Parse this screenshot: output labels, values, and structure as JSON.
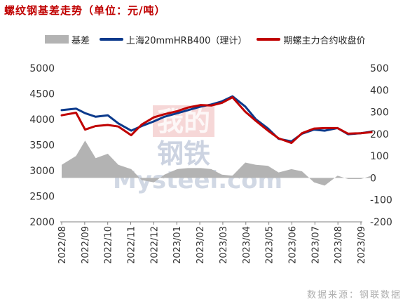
{
  "title": "螺纹钢基差走势（单位：元/吨）",
  "source": "数据来源：钢联数据",
  "watermark": {
    "mark": "我的钢铁",
    "site": "Mysteel.com"
  },
  "chart_data": {
    "type": "line",
    "x_tick_labels": [
      "2022/08",
      "2022/09",
      "2022/10",
      "2022/11",
      "2022/12",
      "2023/01",
      "2023/02",
      "2023/03",
      "2023/04",
      "2023/05",
      "2023/06",
      "2023/07",
      "2023/08",
      "2023/09"
    ],
    "x": [
      "2022-08-01",
      "2022-08-20",
      "2022-09-01",
      "2022-09-15",
      "2022-10-01",
      "2022-10-15",
      "2022-11-01",
      "2022-11-15",
      "2022-12-01",
      "2022-12-15",
      "2023-01-01",
      "2023-01-15",
      "2023-02-01",
      "2023-02-15",
      "2023-03-01",
      "2023-03-15",
      "2023-04-01",
      "2023-04-15",
      "2023-05-01",
      "2023-05-15",
      "2023-06-01",
      "2023-06-15",
      "2023-07-01",
      "2023-07-15",
      "2023-08-01",
      "2023-08-15",
      "2023-09-01",
      "2023-09-15"
    ],
    "y_left": {
      "range": [
        2000,
        5000
      ],
      "ticks": [
        5000,
        4500,
        4000,
        3500,
        3000,
        2500,
        2000
      ]
    },
    "y_right": {
      "range": [
        -200,
        500
      ],
      "ticks": [
        500,
        400,
        300,
        200,
        100,
        0,
        -100,
        -200
      ]
    },
    "legend_position": "top",
    "series": [
      {
        "name": "基差",
        "axis": "right",
        "kind": "area",
        "color": "#b3b3b3",
        "values": [
          60,
          100,
          170,
          90,
          110,
          60,
          40,
          -10,
          -20,
          15,
          40,
          45,
          45,
          40,
          15,
          10,
          70,
          60,
          55,
          25,
          40,
          30,
          -20,
          -35,
          10,
          -5,
          -5,
          10
        ]
      },
      {
        "name": "上海20mmHRB400（理计）",
        "axis": "left",
        "kind": "line",
        "color": "#0b3a8c",
        "values": [
          4180,
          4210,
          4120,
          4050,
          4080,
          3920,
          3780,
          3870,
          3960,
          4050,
          4120,
          4180,
          4250,
          4290,
          4350,
          4450,
          4250,
          4000,
          3820,
          3620,
          3570,
          3720,
          3800,
          3780,
          3830,
          3710,
          3730,
          3760
        ]
      },
      {
        "name": "期螺主力合约收盘价",
        "axis": "left",
        "kind": "line",
        "color": "#c00000",
        "values": [
          4080,
          4130,
          3800,
          3870,
          3890,
          3860,
          3690,
          3900,
          4040,
          4100,
          4160,
          4230,
          4280,
          4270,
          4320,
          4430,
          4150,
          3970,
          3780,
          3630,
          3540,
          3730,
          3820,
          3830,
          3830,
          3720,
          3730,
          3750
        ]
      }
    ]
  }
}
